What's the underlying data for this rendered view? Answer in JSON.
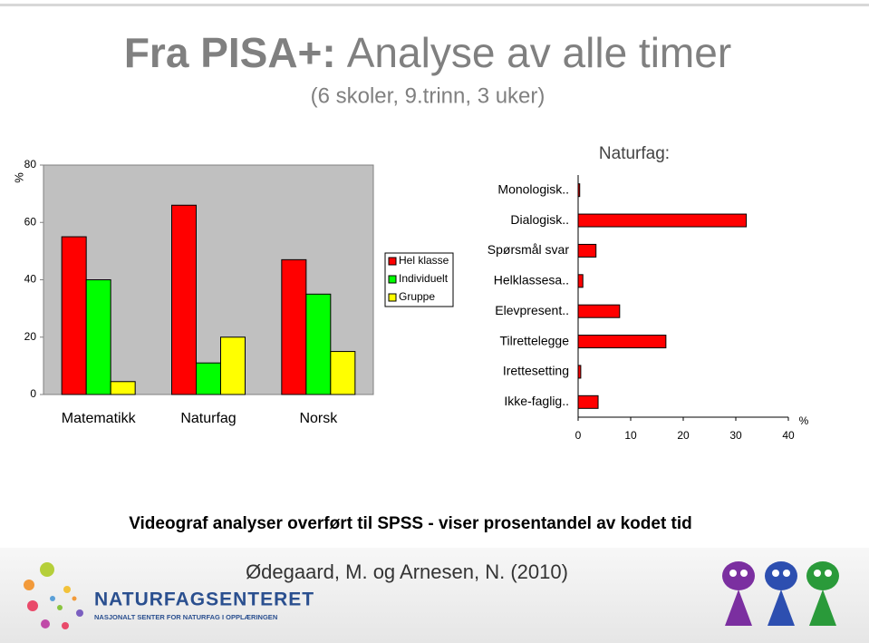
{
  "slide": {
    "title_lead": "Fra PISA+:",
    "title": "Analyse av alle timer",
    "subtitle": "(6 skoler, 9.trinn, 3 uker)",
    "caption": "Videograf analyser overført til SPSS - viser prosentandel av kodet tid",
    "credit": "Ødegaard, M. og Arnesen, N. (2010)",
    "logo": {
      "name": "NATURFAGSENTERET",
      "tagline": "NASJONALT SENTER FOR NATURFAG I OPPLÆRINGEN"
    }
  },
  "chart_data": [
    {
      "type": "bar",
      "ylabel": "%",
      "categories": [
        "Matematikk",
        "Naturfag",
        "Norsk"
      ],
      "series": [
        {
          "name": "Hel klasse",
          "color": "#ff0000",
          "values": [
            55,
            66,
            47
          ]
        },
        {
          "name": "Individuelt",
          "color": "#00ff00",
          "values": [
            40,
            11,
            35
          ]
        },
        {
          "name": "Gruppe",
          "color": "#ffff00",
          "values": [
            4.5,
            20,
            15
          ]
        }
      ],
      "ylim": [
        0,
        80
      ],
      "yticks": [
        0,
        20,
        40,
        60,
        80
      ],
      "grid": false,
      "legend": "right"
    },
    {
      "type": "barh",
      "title": "Naturfag:",
      "xlabel": "%",
      "color": "#ff0000",
      "categories": [
        "Monologisk..",
        "Dialogisk..",
        "Spørsmål svar",
        "Helklassesa..",
        "Elevpresent..",
        "Tilrettelegge",
        "Irettesetting",
        "Ikke-faglig.."
      ],
      "values": [
        0.3,
        32,
        3.4,
        0.9,
        7.9,
        16.7,
        0.5,
        3.8
      ],
      "xlim": [
        0,
        40
      ],
      "xticks": [
        0,
        10,
        20,
        30,
        40
      ]
    }
  ]
}
